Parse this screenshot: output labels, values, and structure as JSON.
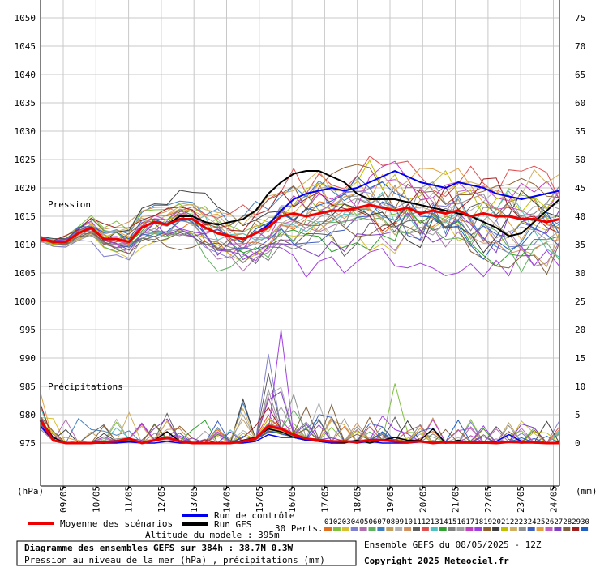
{
  "chart_data": {
    "type": "line",
    "left_axis": {
      "unit": "(hPa)",
      "ticks": [
        1050,
        1045,
        1040,
        1035,
        1030,
        1025,
        1020,
        1015,
        1010,
        1005,
        1000,
        995,
        990,
        985,
        980,
        975
      ]
    },
    "right_axis": {
      "unit": "(mm)",
      "ticks": [
        75,
        70,
        65,
        60,
        55,
        50,
        45,
        40,
        35,
        30,
        25,
        20,
        15,
        10,
        5,
        0
      ]
    },
    "x_ticks": [
      "09/05",
      "10/05",
      "11/05",
      "12/05",
      "13/05",
      "14/05",
      "15/05",
      "16/05",
      "17/05",
      "18/05",
      "19/05",
      "20/05",
      "21/05",
      "22/05",
      "23/05",
      "24/05"
    ],
    "panel_labels": {
      "pressure": "Pression",
      "precip": "Précipitations"
    },
    "pressure": {
      "mean": [
        1011,
        1010.5,
        1010.5,
        1012,
        1013,
        1011,
        1011,
        1010.5,
        1013,
        1014,
        1013.5,
        1014.5,
        1014.5,
        1013,
        1012,
        1011.5,
        1011,
        1012,
        1013,
        1015,
        1015.5,
        1015,
        1015.5,
        1016,
        1016,
        1016.5,
        1017,
        1016.5,
        1016,
        1016.5,
        1015.5,
        1016,
        1015.5,
        1016,
        1015,
        1015.5,
        1015,
        1015,
        1014.5,
        1014.5,
        1014,
        1014.5
      ],
      "control": [
        1011,
        1010.5,
        1010.5,
        1012,
        1013,
        1011,
        1011,
        1010.5,
        1013,
        1014,
        1013.5,
        1014.5,
        1014.5,
        1013,
        1012,
        1011.5,
        1011,
        1012,
        1013.5,
        1016,
        1018,
        1019,
        1019.5,
        1020,
        1019.5,
        1020,
        1021,
        1022,
        1023,
        1022,
        1021,
        1020.5,
        1020,
        1021,
        1020.5,
        1020,
        1019,
        1018.5,
        1018,
        1018.5,
        1019,
        1019.5
      ],
      "gfs": [
        1011,
        1010.5,
        1010.5,
        1012,
        1013,
        1011,
        1011,
        1010.5,
        1013,
        1014,
        1013.5,
        1015,
        1015,
        1014,
        1013.5,
        1014,
        1014.5,
        1016,
        1019,
        1021,
        1022.5,
        1023,
        1023,
        1022,
        1021,
        1019,
        1018,
        1018,
        1018,
        1017.5,
        1017,
        1016.5,
        1016,
        1015.5,
        1015,
        1014,
        1013,
        1011.5,
        1012,
        1014,
        1016,
        1018
      ]
    },
    "precip": {
      "mean": [
        4,
        0.5,
        0,
        0,
        0,
        0.2,
        0.3,
        0.8,
        0,
        0.5,
        1,
        0.3,
        0,
        0,
        0,
        0,
        0.3,
        0.8,
        3,
        2.5,
        1.5,
        0.8,
        0.5,
        0.3,
        0.3,
        0.2,
        0.5,
        0.5,
        0.3,
        0.2,
        0.3,
        0,
        0.2,
        0.1,
        0.1,
        0.1,
        0,
        0.2,
        0.1,
        0.1,
        0,
        0
      ],
      "control": [
        3,
        0.5,
        0,
        0,
        0,
        0,
        0,
        0.2,
        0,
        0,
        0.3,
        0,
        0,
        0,
        0,
        0,
        0,
        0.3,
        1.5,
        1,
        1,
        0.5,
        0.3,
        0,
        0.3,
        0,
        0.3,
        0,
        0,
        0,
        0.2,
        0,
        0,
        0,
        0,
        0,
        0.3,
        1.5,
        0.3,
        0,
        0,
        0.2
      ],
      "gfs": [
        4,
        1,
        0,
        0,
        0,
        0,
        0.2,
        0.3,
        0,
        0.5,
        2,
        0.3,
        0,
        0,
        0,
        0,
        0.5,
        1,
        2.5,
        2,
        1,
        0.5,
        0.3,
        0,
        0,
        0.5,
        0,
        0.5,
        1,
        0.5,
        0.5,
        2.5,
        0,
        0.5,
        0,
        0,
        0,
        0.2,
        0,
        0.2,
        0,
        0
      ]
    },
    "members": 30,
    "member_colors": [
      "#e07020",
      "#80c040",
      "#d8c030",
      "#8080d0",
      "#b070b0",
      "#60b060",
      "#4080c0",
      "#c0a060",
      "#b0b0b0",
      "#d09060",
      "#606060",
      "#e05050",
      "#50c0c0",
      "#30a030",
      "#808080",
      "#a0a0a0",
      "#c040c0",
      "#a040e0",
      "#906030",
      "#404040",
      "#c0c000",
      "#d0b060",
      "#909090",
      "#4060c0",
      "#e0a040",
      "#c060c0",
      "#8040c0",
      "#806040",
      "#a02020",
      "#2060c0"
    ]
  },
  "legend": {
    "mean_label": "Moyenne des scénarios",
    "control_label": "Run de contrôle",
    "gfs_label": "Run GFS",
    "perts_label": "30 Perts.",
    "mean_color": "#ee0000",
    "control_color": "#0000ee",
    "gfs_color": "#000000",
    "altitude": "Altitude du modele : 395m",
    "member_numbers": [
      "01",
      "02",
      "03",
      "04",
      "05",
      "06",
      "07",
      "08",
      "09",
      "10",
      "11",
      "12",
      "13",
      "14",
      "15",
      "16",
      "17",
      "18",
      "19",
      "20",
      "21",
      "22",
      "23",
      "24",
      "25",
      "26",
      "27",
      "28",
      "29",
      "30"
    ]
  },
  "footer": {
    "title": "Diagramme des ensembles GEFS sur 384h : 38.7N 0.3W",
    "subtitle": "Pression au niveau de la mer (hPa) , précipitations (mm)",
    "run": "Ensemble GEFS du 08/05/2025 - 12Z",
    "copyright": "Copyright 2025 Meteociel.fr"
  }
}
